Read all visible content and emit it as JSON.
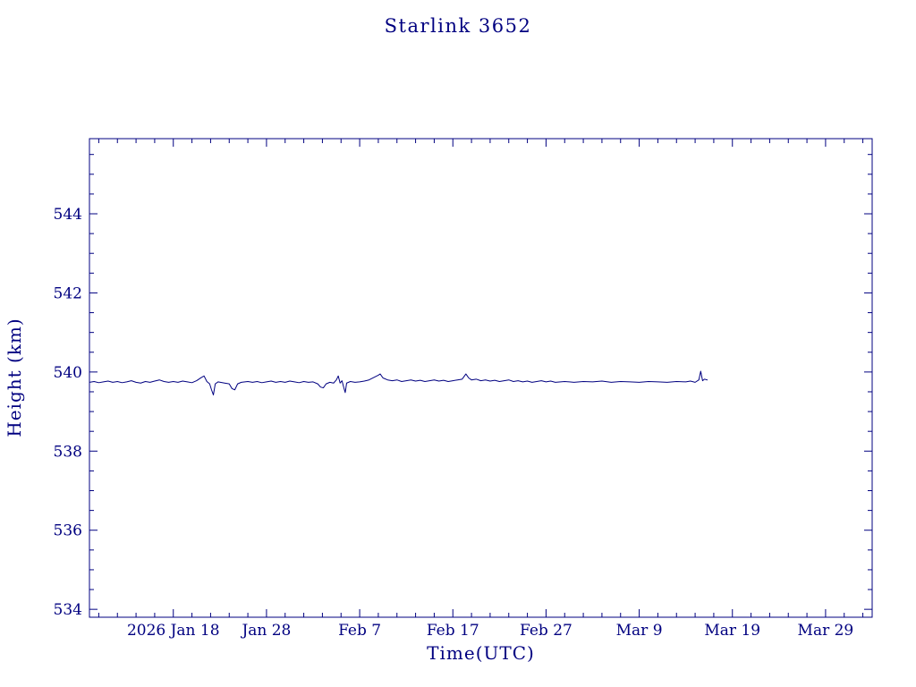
{
  "page": {
    "background": "#ffffff"
  },
  "chart_data": {
    "type": "line",
    "title": "Starlink 3652",
    "xlabel": "Time(UTC)",
    "ylabel": "Height (km)",
    "axis_color": "#000080",
    "line_color": "#000080",
    "grid": false,
    "legend": false,
    "x_unit": "days (0 = 2026 Jan 9)",
    "xlim": [
      0,
      84
    ],
    "ylim": [
      533.8,
      545.9
    ],
    "x_ticks": [
      {
        "x": 9,
        "label": "2026 Jan 18"
      },
      {
        "x": 19,
        "label": "Jan 28"
      },
      {
        "x": 29,
        "label": "Feb 7"
      },
      {
        "x": 39,
        "label": "Feb 17"
      },
      {
        "x": 49,
        "label": "Feb 27"
      },
      {
        "x": 59,
        "label": "Mar 9"
      },
      {
        "x": 69,
        "label": "Mar 19"
      },
      {
        "x": 79,
        "label": "Mar 29"
      }
    ],
    "x_minor_step": 2,
    "y_ticks": [
      {
        "v": 534,
        "label": "534"
      },
      {
        "v": 536,
        "label": "536"
      },
      {
        "v": 538,
        "label": "538"
      },
      {
        "v": 540,
        "label": "540"
      },
      {
        "v": 542,
        "label": "542"
      },
      {
        "v": 544,
        "label": "544"
      }
    ],
    "y_minor_step": 0.5,
    "series": [
      {
        "name": "Starlink 3652 height",
        "points": [
          [
            0,
            539.74
          ],
          [
            0.5,
            539.76
          ],
          [
            1,
            539.73
          ],
          [
            1.5,
            539.75
          ],
          [
            2,
            539.77
          ],
          [
            2.5,
            539.74
          ],
          [
            3,
            539.76
          ],
          [
            3.5,
            539.73
          ],
          [
            4,
            539.75
          ],
          [
            4.5,
            539.78
          ],
          [
            5,
            539.74
          ],
          [
            5.5,
            539.72
          ],
          [
            6,
            539.76
          ],
          [
            6.5,
            539.74
          ],
          [
            7,
            539.77
          ],
          [
            7.5,
            539.8
          ],
          [
            8,
            539.76
          ],
          [
            8.5,
            539.74
          ],
          [
            9,
            539.76
          ],
          [
            9.5,
            539.74
          ],
          [
            10,
            539.77
          ],
          [
            10.5,
            539.75
          ],
          [
            11,
            539.73
          ],
          [
            11.5,
            539.78
          ],
          [
            12,
            539.86
          ],
          [
            12.3,
            539.9
          ],
          [
            12.6,
            539.76
          ],
          [
            12.9,
            539.7
          ],
          [
            13.1,
            539.55
          ],
          [
            13.3,
            539.42
          ],
          [
            13.5,
            539.7
          ],
          [
            13.8,
            539.75
          ],
          [
            14.5,
            539.72
          ],
          [
            15,
            539.7
          ],
          [
            15.3,
            539.58
          ],
          [
            15.6,
            539.55
          ],
          [
            15.9,
            539.7
          ],
          [
            16.3,
            539.74
          ],
          [
            17,
            539.76
          ],
          [
            17.5,
            539.74
          ],
          [
            18,
            539.76
          ],
          [
            18.5,
            539.73
          ],
          [
            19,
            539.75
          ],
          [
            19.5,
            539.77
          ],
          [
            20,
            539.74
          ],
          [
            20.5,
            539.76
          ],
          [
            21,
            539.74
          ],
          [
            21.5,
            539.77
          ],
          [
            22,
            539.75
          ],
          [
            22.5,
            539.73
          ],
          [
            23,
            539.76
          ],
          [
            23.5,
            539.74
          ],
          [
            24,
            539.75
          ],
          [
            24.5,
            539.7
          ],
          [
            24.8,
            539.62
          ],
          [
            25.1,
            539.6
          ],
          [
            25.4,
            539.7
          ],
          [
            25.8,
            539.74
          ],
          [
            26.2,
            539.72
          ],
          [
            26.5,
            539.8
          ],
          [
            26.7,
            539.9
          ],
          [
            26.9,
            539.72
          ],
          [
            27.1,
            539.78
          ],
          [
            27.3,
            539.6
          ],
          [
            27.45,
            539.48
          ],
          [
            27.6,
            539.72
          ],
          [
            28,
            539.76
          ],
          [
            28.5,
            539.74
          ],
          [
            29,
            539.75
          ],
          [
            29.5,
            539.77
          ],
          [
            30,
            539.8
          ],
          [
            30.5,
            539.86
          ],
          [
            31,
            539.92
          ],
          [
            31.2,
            539.95
          ],
          [
            31.5,
            539.85
          ],
          [
            32,
            539.8
          ],
          [
            32.5,
            539.78
          ],
          [
            33,
            539.8
          ],
          [
            33.5,
            539.76
          ],
          [
            34,
            539.78
          ],
          [
            34.5,
            539.8
          ],
          [
            35,
            539.77
          ],
          [
            35.5,
            539.79
          ],
          [
            36,
            539.76
          ],
          [
            36.5,
            539.78
          ],
          [
            37,
            539.8
          ],
          [
            37.5,
            539.77
          ],
          [
            38,
            539.79
          ],
          [
            38.5,
            539.76
          ],
          [
            39,
            539.78
          ],
          [
            39.5,
            539.8
          ],
          [
            40,
            539.82
          ],
          [
            40.4,
            539.95
          ],
          [
            40.7,
            539.85
          ],
          [
            41,
            539.8
          ],
          [
            41.5,
            539.82
          ],
          [
            42,
            539.78
          ],
          [
            42.5,
            539.8
          ],
          [
            43,
            539.77
          ],
          [
            43.5,
            539.79
          ],
          [
            44,
            539.76
          ],
          [
            44.5,
            539.78
          ],
          [
            45,
            539.8
          ],
          [
            45.5,
            539.76
          ],
          [
            46,
            539.78
          ],
          [
            46.5,
            539.75
          ],
          [
            47,
            539.77
          ],
          [
            47.5,
            539.74
          ],
          [
            48,
            539.76
          ],
          [
            48.5,
            539.78
          ],
          [
            49,
            539.75
          ],
          [
            49.5,
            539.77
          ],
          [
            50,
            539.74
          ],
          [
            51,
            539.76
          ],
          [
            52,
            539.74
          ],
          [
            53,
            539.76
          ],
          [
            54,
            539.75
          ],
          [
            55,
            539.77
          ],
          [
            56,
            539.74
          ],
          [
            57,
            539.76
          ],
          [
            58,
            539.75
          ],
          [
            59,
            539.74
          ],
          [
            60,
            539.76
          ],
          [
            61,
            539.75
          ],
          [
            62,
            539.74
          ],
          [
            63,
            539.76
          ],
          [
            64,
            539.75
          ],
          [
            64.5,
            539.77
          ],
          [
            65,
            539.74
          ],
          [
            65.4,
            539.8
          ],
          [
            65.6,
            540.02
          ],
          [
            65.8,
            539.78
          ],
          [
            66,
            539.82
          ],
          [
            66.3,
            539.8
          ]
        ]
      }
    ]
  }
}
